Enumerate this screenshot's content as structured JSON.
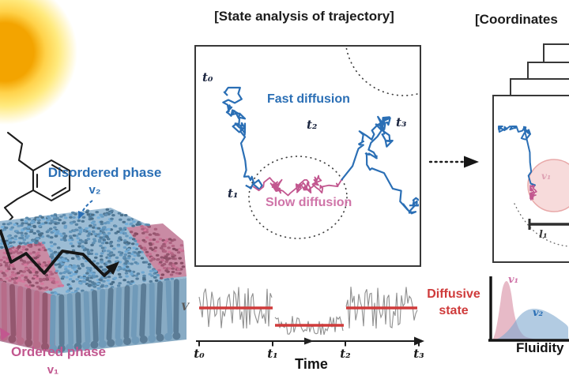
{
  "figure": {
    "left": {
      "disordered_phase_label": "Disordered phase",
      "disordered_phase_symbol": "v₂",
      "ordered_phase_label": "Ordered phase",
      "ordered_phase_symbol": "v₁"
    },
    "center": {
      "title": "[State analysis of trajectory]",
      "fast_diffusion_label": "Fast diffusion",
      "slow_diffusion_label": "Slow diffusion",
      "t0": "t₀",
      "t1": "t₁",
      "t2": "t₂",
      "t3": "t₃",
      "time_plot": {
        "y_axis_label": "V",
        "x_axis_label": "Time",
        "diffusive_state_label": "Diffusive state",
        "tick_t0": "t₀",
        "tick_t1": "t₁",
        "tick_t2": "t₂",
        "tick_t3": "t₃"
      }
    },
    "right": {
      "title": "[Coordinates",
      "circle_state_symbol": "v₁",
      "length_scale_label": "l₁",
      "distribution": {
        "series_1_label": "v₁",
        "series_2_label": "v₂",
        "x_axis_label": "Fluidity"
      }
    }
  },
  "colors": {
    "blue": "#2b6fb5",
    "pink": "#c2578f",
    "pink_light": "#cf74a8",
    "red": "#cf3b3b",
    "navy": "#1c2640",
    "gray_noise": "#8f8f8f",
    "sun_core": "#f3a400",
    "sun_mid": "#ffd24a",
    "sun_glow": "#ffea7e",
    "membrane_blue": "#9cbcd4",
    "membrane_pink": "#c98ba4",
    "membrane_blue_front": "#88abc4",
    "membrane_pink_front": "#b87e99",
    "circle_fill": "#f7dbdb",
    "circle_stroke": "#e8a9a9",
    "dist_pink_fill": "#d98fa4",
    "dist_blue_fill": "#7fa9cf"
  }
}
